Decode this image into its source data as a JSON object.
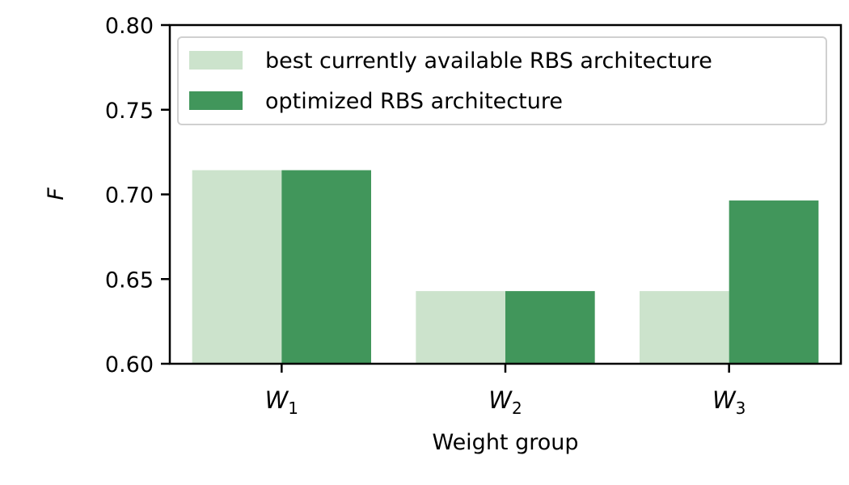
{
  "chart_data": {
    "type": "bar",
    "categories": [
      {
        "base": "W",
        "sub": "1"
      },
      {
        "base": "W",
        "sub": "2"
      },
      {
        "base": "W",
        "sub": "3"
      }
    ],
    "series": [
      {
        "name": "best currently available RBS architecture",
        "color": "#cce3cc",
        "values": [
          0.7143,
          0.6429,
          0.6429
        ]
      },
      {
        "name": "optimized RBS architecture",
        "color": "#41965b",
        "values": [
          0.7143,
          0.6429,
          0.6964
        ]
      }
    ],
    "xlabel": "Weight group",
    "ylabel": "F",
    "ylim": [
      0.6,
      0.8
    ],
    "yticks": [
      "0.60",
      "0.65",
      "0.70",
      "0.75",
      "0.80"
    ],
    "grid": false,
    "legend_position": "top-right"
  }
}
